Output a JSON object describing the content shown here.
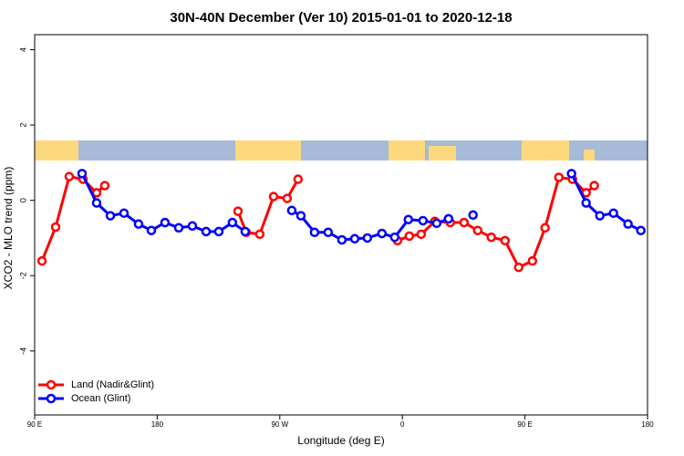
{
  "chart_data": {
    "type": "line",
    "title": "30N-40N December (Ver 10)   2015-01-01 to 2020-12-18",
    "xlabel": "Longitude (deg E)",
    "ylabel": "XCO2 - MLO trend (ppm)",
    "xlim": [
      90,
      540
    ],
    "ylim": [
      -5.7,
      4.4
    ],
    "xticks": [
      {
        "value": 90,
        "label": "90 E"
      },
      180,
      {
        "value": 270,
        "label": "90 W"
      },
      {
        "value": 360,
        "label": "0"
      },
      {
        "value": 450,
        "label": "90 E"
      },
      {
        "value": 540,
        "label": "180"
      }
    ],
    "yticks": [
      -4,
      -2,
      0,
      2,
      4
    ],
    "legend": "bottom-left",
    "series": [
      {
        "name": "Land (Nadir&Glint)",
        "color": "#ff0000",
        "x": [
          95.4,
          105.4,
          115.4,
          125.5,
          135.5,
          141.5,
          null,
          239.3,
          245.3,
          255.3,
          265.4,
          275.4,
          283.4,
          null,
          356.4,
          365.1,
          373.8,
          383.8,
          395.2,
          405.3,
          415.3,
          425.3,
          435.4,
          445.4,
          455.5,
          464.8,
          474.9,
          484.9,
          494.9,
          500.9
        ],
        "values": [
          -1.61,
          -0.71,
          0.63,
          0.56,
          0.2,
          0.39,
          null,
          -0.29,
          -0.85,
          -0.9,
          0.1,
          0.05,
          0.56,
          null,
          -1.07,
          -0.95,
          -0.9,
          -0.56,
          -0.59,
          -0.59,
          -0.8,
          -0.98,
          -1.07,
          -1.78,
          -1.61,
          -0.73,
          0.61,
          0.56,
          0.2,
          0.39
        ]
      },
      {
        "name": "Ocean (Glint)",
        "color": "#0000ff",
        "x": [
          124.8,
          135.5,
          145.6,
          155.6,
          166.3,
          175.7,
          185.7,
          195.8,
          205.8,
          215.9,
          225.2,
          235.2,
          244.6,
          null,
          278.8,
          285.5,
          295.5,
          305.5,
          315.6,
          325,
          334.3,
          345,
          354.4,
          364.4,
          375.1,
          385.2,
          393.9,
          null,
          411.9,
          null,
          484.2,
          494.9,
          505,
          515,
          525.7,
          535.1
        ],
        "values": [
          0.71,
          -0.07,
          -0.41,
          -0.34,
          -0.63,
          -0.8,
          -0.59,
          -0.73,
          -0.68,
          -0.83,
          -0.83,
          -0.59,
          -0.83,
          null,
          -0.27,
          -0.41,
          -0.85,
          -0.85,
          -1.05,
          -1.02,
          -1.0,
          -0.88,
          -0.98,
          -0.51,
          -0.54,
          -0.61,
          -0.49,
          null,
          -0.39,
          null,
          0.71,
          -0.07,
          -0.41,
          -0.34,
          -0.63,
          -0.8
        ]
      }
    ]
  }
}
